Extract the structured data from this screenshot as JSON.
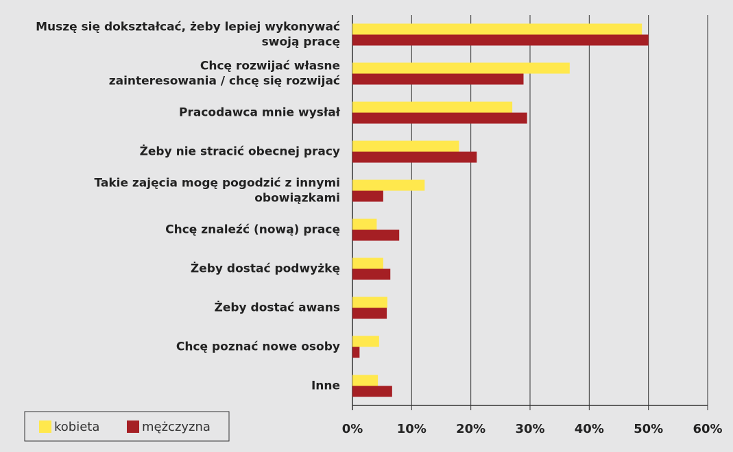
{
  "chart_data": {
    "type": "bar",
    "orientation": "horizontal",
    "categories": [
      "Muszę się dokształcać, żeby lepiej wykonywać\nswoją pracę",
      "Chcę rozwijać własne\nzainteresowania / chcę się rozwijać",
      "Pracodawca mnie wysłał",
      "Żeby nie stracić obecnej pracy",
      "Takie zajęcia mogę pogodzić z innymi\nobowiązkami",
      "Chcę znaleźć (nową) pracę",
      "Żeby dostać podwyżkę",
      "Żeby dostać awans",
      "Chcę poznać nowe osoby",
      "Inne"
    ],
    "series": [
      {
        "name": "kobieta",
        "color": "#ffe84d",
        "values": [
          48.9,
          36.7,
          27.0,
          18.0,
          12.2,
          4.1,
          5.2,
          5.9,
          4.5,
          4.3
        ]
      },
      {
        "name": "mężczyzna",
        "color": "#a51f24",
        "values": [
          50.0,
          28.9,
          29.5,
          21.0,
          5.2,
          7.9,
          6.4,
          5.8,
          1.2,
          6.7
        ]
      }
    ],
    "xlim": [
      0,
      60
    ],
    "xticks": [
      {
        "value": 0,
        "label": "0%"
      },
      {
        "value": 10,
        "label": "10%"
      },
      {
        "value": 20,
        "label": "20%"
      },
      {
        "value": 30,
        "label": "30%"
      },
      {
        "value": 40,
        "label": "40%"
      },
      {
        "value": 50,
        "label": "50%"
      },
      {
        "value": 60,
        "label": "60%"
      }
    ],
    "grid": true,
    "legend": "bottom-left"
  }
}
